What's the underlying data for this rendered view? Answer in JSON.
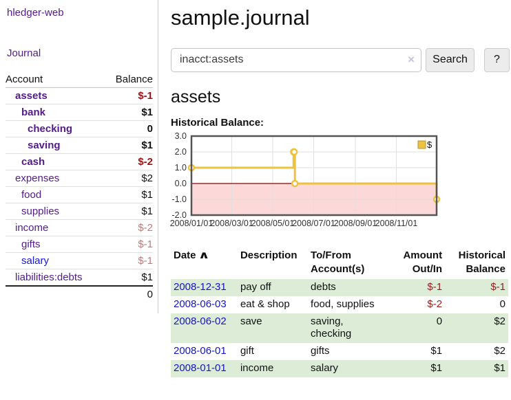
{
  "brand": "hledger-web",
  "nav": {
    "journal": "Journal"
  },
  "sidebar": {
    "headers": {
      "account": "Account",
      "balance": "Balance"
    },
    "accounts": [
      {
        "name": "assets",
        "level": 1,
        "bold": true,
        "balance": "$-1",
        "neg": "strong"
      },
      {
        "name": "bank",
        "level": 2,
        "bold": true,
        "balance": "$1"
      },
      {
        "name": "checking",
        "level": 3,
        "bold": true,
        "balance": "0"
      },
      {
        "name": "saving",
        "level": 3,
        "bold": true,
        "balance": "$1"
      },
      {
        "name": "cash",
        "level": 2,
        "bold": true,
        "balance": "$-2",
        "neg": "strong"
      },
      {
        "name": "expenses",
        "level": 1,
        "bold": false,
        "balance": "$2"
      },
      {
        "name": "food",
        "level": 2,
        "bold": false,
        "balance": "$1"
      },
      {
        "name": "supplies",
        "level": 2,
        "bold": false,
        "balance": "$1"
      },
      {
        "name": "income",
        "level": 1,
        "bold": false,
        "balance": "$-2",
        "neg": "soft"
      },
      {
        "name": "gifts",
        "level": 2,
        "bold": false,
        "balance": "$-1",
        "neg": "soft"
      },
      {
        "name": "salary",
        "level": 2,
        "bold": false,
        "balance": "$-1",
        "neg": "soft",
        "link_color": "blue"
      },
      {
        "name": "liabilities:debts",
        "level": 1,
        "bold": false,
        "balance": "$1"
      }
    ],
    "total": "0"
  },
  "header": {
    "title": "sample.journal"
  },
  "search": {
    "value": "inacct:assets",
    "clear_label": "×",
    "search_button": "Search",
    "help_button": "?"
  },
  "account_view": {
    "title": "assets",
    "chart_heading": "Historical Balance:"
  },
  "chart_data": {
    "type": "line",
    "step": true,
    "title": "Historical Balance:",
    "series": [
      {
        "name": "$",
        "color": "#edc240",
        "points": [
          [
            "2008-01-01",
            1
          ],
          [
            "2008-06-01",
            2
          ],
          [
            "2008-06-02",
            2
          ],
          [
            "2008-06-03",
            0
          ],
          [
            "2008-12-31",
            -1
          ]
        ]
      }
    ],
    "x_ticks": [
      "2008/01/01",
      "2008/03/01",
      "2008/05/01",
      "2008/07/01",
      "2008/09/01",
      "2008/11/01"
    ],
    "y_ticks": [
      3.0,
      2.0,
      1.0,
      0.0,
      -1.0,
      -2.0
    ],
    "xlim": [
      "2008-01-01",
      "2008-12-31"
    ],
    "ylim": [
      -2,
      3
    ],
    "grid": true,
    "legend_position": "top-right",
    "negative_region_color": "#fcd8d8",
    "zero_line_color": "#8b0000",
    "border_color": "#545454"
  },
  "register": {
    "columns": {
      "date": "Date",
      "sort_indicator": "∧",
      "description": "Description",
      "tofrom_line1": "To/From",
      "tofrom_line2": "Account(s)",
      "amount_line1": "Amount",
      "amount_line2": "Out/In",
      "historical_line1": "Historical",
      "historical_line2": "Balance"
    },
    "rows": [
      {
        "date": "2008-12-31",
        "description": "pay off",
        "accounts": "debts",
        "amount": "$-1",
        "amount_neg": true,
        "balance": "$-1",
        "balance_neg": true,
        "shaded": true
      },
      {
        "date": "2008-06-03",
        "description": "eat & shop",
        "accounts": "food, supplies",
        "amount": "$-2",
        "amount_neg": true,
        "balance": "0",
        "balance_neg": false,
        "shaded": false
      },
      {
        "date": "2008-06-02",
        "description": "save",
        "accounts": "saving, checking",
        "amount": "0",
        "amount_neg": false,
        "balance": "$2",
        "balance_neg": false,
        "shaded": true
      },
      {
        "date": "2008-06-01",
        "description": "gift",
        "accounts": "gifts",
        "amount": "$1",
        "amount_neg": false,
        "balance": "$2",
        "balance_neg": false,
        "shaded": false
      },
      {
        "date": "2008-01-01",
        "description": "income",
        "accounts": "salary",
        "amount": "$1",
        "amount_neg": false,
        "balance": "$1",
        "balance_neg": false,
        "shaded": true
      }
    ]
  }
}
